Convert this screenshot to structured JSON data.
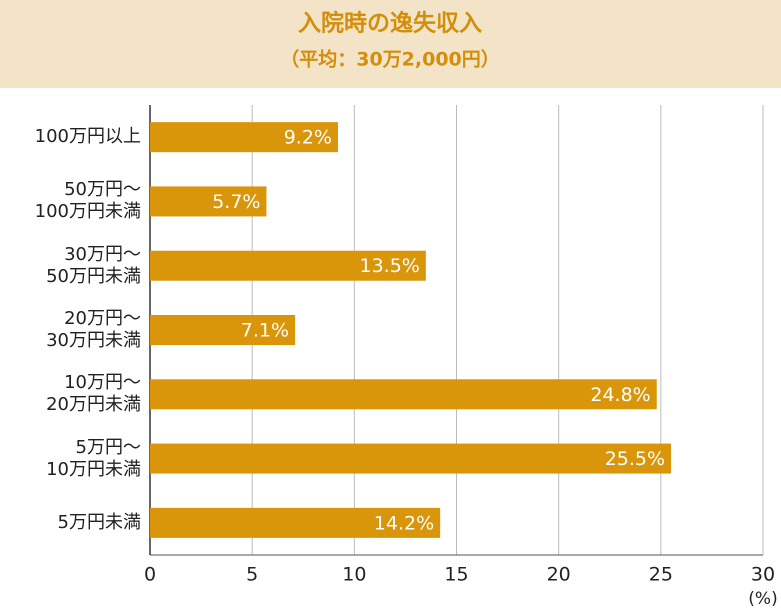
{
  "chart_data": {
    "type": "bar",
    "orientation": "horizontal",
    "title": "入院時の逸失収入",
    "subtitle": "（平均：30万2,000円）",
    "categories": [
      "100万円以上",
      "50万円～\n100万円未満",
      "30万円～\n50万円未満",
      "20万円～\n30万円未満",
      "10万円～\n20万円未満",
      "5万円～\n10万円未満",
      "5万円未満"
    ],
    "values": [
      9.2,
      5.7,
      13.5,
      7.1,
      24.8,
      25.5,
      14.2
    ],
    "value_labels": [
      "9.2%",
      "5.7%",
      "13.5%",
      "7.1%",
      "24.8%",
      "25.5%",
      "14.2%"
    ],
    "color": "#d9960a",
    "xlim": [
      0,
      30
    ],
    "xticks": [
      0,
      5,
      10,
      15,
      20,
      25,
      30
    ],
    "xlabel": "(%)",
    "grid": true
  }
}
